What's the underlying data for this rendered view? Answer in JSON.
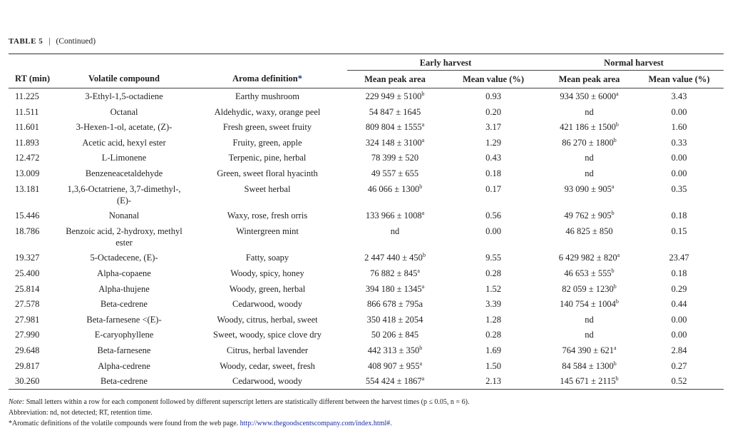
{
  "caption": {
    "label": "TABLE 5",
    "text": "(Continued)"
  },
  "groups": {
    "early": "Early harvest",
    "normal": "Normal harvest"
  },
  "headers": {
    "rt": "RT (min)",
    "compound": "Volatile compound",
    "aroma": "Aroma definition",
    "aroma_mark": "*",
    "early_area": "Mean peak area",
    "early_pct": "Mean value (%)",
    "normal_area": "Mean peak area",
    "normal_pct": "Mean value (%)"
  },
  "rows": [
    {
      "rt": "11.225",
      "compound": "3-Ethyl-1,5-octadiene",
      "aroma": "Earthy mushroom",
      "early_area": "229 949 ± 5100",
      "early_sup": "b",
      "early_pct": "0.93",
      "normal_area": "934 350 ± 6000",
      "normal_sup": "a",
      "normal_pct": "3.43"
    },
    {
      "rt": "11.511",
      "compound": "Octanal",
      "aroma": "Aldehydic, waxy, orange peel",
      "early_area": "54 847 ± 1645",
      "early_sup": "",
      "early_pct": "0.20",
      "normal_area": "nd",
      "normal_sup": "",
      "normal_pct": "0.00"
    },
    {
      "rt": "11.601",
      "compound": "3-Hexen-1-ol, acetate, (Z)-",
      "aroma": "Fresh green, sweet fruity",
      "early_area": "809 804 ± 1555",
      "early_sup": "a",
      "early_pct": "3.17",
      "normal_area": "421 186 ± 1500",
      "normal_sup": "b",
      "normal_pct": "1.60"
    },
    {
      "rt": "11.893",
      "compound": "Acetic acid, hexyl ester",
      "aroma": "Fruity, green, apple",
      "early_area": "324 148 ± 3100",
      "early_sup": "a",
      "early_pct": "1.29",
      "normal_area": "86 270 ± 1800",
      "normal_sup": "b",
      "normal_pct": "0.33"
    },
    {
      "rt": "12.472",
      "compound": "L-Limonene",
      "aroma": "Terpenic, pine, herbal",
      "early_area": "78 399 ± 520",
      "early_sup": "",
      "early_pct": "0.43",
      "normal_area": "nd",
      "normal_sup": "",
      "normal_pct": "0.00"
    },
    {
      "rt": "13.009",
      "compound": "Benzeneacetaldehyde",
      "aroma": "Green, sweet floral hyacinth",
      "early_area": "49 557 ± 655",
      "early_sup": "",
      "early_pct": "0.18",
      "normal_area": "nd",
      "normal_sup": "",
      "normal_pct": "0.00"
    },
    {
      "rt": "13.181",
      "compound": "1,3,6-Octatriene, 3,7-dimethyl-, (E)-",
      "aroma": "Sweet herbal",
      "early_area": "46 066 ± 1300",
      "early_sup": "b",
      "early_pct": "0.17",
      "normal_area": "93 090 ± 905",
      "normal_sup": "a",
      "normal_pct": "0.35"
    },
    {
      "rt": "15.446",
      "compound": "Nonanal",
      "aroma": "Waxy, rose, fresh orris",
      "early_area": "133 966 ± 1008",
      "early_sup": "a",
      "early_pct": "0.56",
      "normal_area": "49 762 ± 905",
      "normal_sup": "b",
      "normal_pct": "0.18"
    },
    {
      "rt": "18.786",
      "compound": "Benzoic acid, 2-hydroxy, methyl ester",
      "aroma": "Wintergreen mint",
      "early_area": "nd",
      "early_sup": "",
      "early_pct": "0.00",
      "normal_area": "46 825 ± 850",
      "normal_sup": "",
      "normal_pct": "0.15"
    },
    {
      "rt": "19.327",
      "compound": "5-Octadecene, (E)-",
      "aroma": "Fatty, soapy",
      "early_area": "2 447 440 ± 450",
      "early_sup": "b",
      "early_pct": "9.55",
      "normal_area": "6 429 982 ± 820",
      "normal_sup": "a",
      "normal_pct": "23.47"
    },
    {
      "rt": "25.400",
      "compound": "Alpha-copaene",
      "aroma": "Woody, spicy, honey",
      "early_area": "76 882 ± 845",
      "early_sup": "a",
      "early_pct": "0.28",
      "normal_area": "46 653 ± 555",
      "normal_sup": "b",
      "normal_pct": "0.18"
    },
    {
      "rt": "25.814",
      "compound": "Alpha-thujene",
      "aroma": "Woody, green, herbal",
      "early_area": "394 180 ± 1345",
      "early_sup": "a",
      "early_pct": "1.52",
      "normal_area": "82 059 ± 1230",
      "normal_sup": "b",
      "normal_pct": "0.29"
    },
    {
      "rt": "27.578",
      "compound": "Beta-cedrene",
      "aroma": "Cedarwood, woody",
      "early_area": "866 678 ± 795a",
      "early_sup": "",
      "early_pct": "3.39",
      "normal_area": "140 754 ± 1004",
      "normal_sup": "b",
      "normal_pct": "0.44"
    },
    {
      "rt": "27.981",
      "compound": "Beta-farnesene <(E)-",
      "aroma": "Woody, citrus, herbal, sweet",
      "early_area": "350 418 ± 2054",
      "early_sup": "",
      "early_pct": "1.28",
      "normal_area": "nd",
      "normal_sup": "",
      "normal_pct": "0.00"
    },
    {
      "rt": "27.990",
      "compound": "E-caryophyllene",
      "aroma": "Sweet, woody, spice clove dry",
      "early_area": "50 206 ± 845",
      "early_sup": "",
      "early_pct": "0.28",
      "normal_area": "nd",
      "normal_sup": "",
      "normal_pct": "0.00"
    },
    {
      "rt": "29.648",
      "compound": "Beta-farnesene",
      "aroma": "Citrus, herbal lavender",
      "early_area": "442 313 ± 350",
      "early_sup": "b",
      "early_pct": "1.69",
      "normal_area": "764 390 ± 621",
      "normal_sup": "a",
      "normal_pct": "2.84"
    },
    {
      "rt": "29.817",
      "compound": "Alpha-cedrene",
      "aroma": "Woody, cedar, sweet, fresh",
      "early_area": "408 907 ± 955",
      "early_sup": "a",
      "early_pct": "1.50",
      "normal_area": "84 584 ± 1300",
      "normal_sup": "b",
      "normal_pct": "0.27"
    },
    {
      "rt": "30.260",
      "compound": "Beta-cedrene",
      "aroma": "Cedarwood, woody",
      "early_area": "554 424 ± 1867",
      "early_sup": "a",
      "early_pct": "2.13",
      "normal_area": "145 671 ± 2115",
      "normal_sup": "b",
      "normal_pct": "0.52"
    }
  ],
  "notes": {
    "note_label": "Note:",
    "note": " Small letters within a row for each component followed by different superscript letters are statistically different between the harvest times (p ≤ 0.05, n = 6).",
    "abbreviation": "Abbreviation: nd, not detected; RT, retention time.",
    "aroma_mark": "*",
    "aroma_source": "Aromatic definitions of the volatile compounds were found from the web page. ",
    "link": "http://www.thegoodscentscompany.com/index.html#."
  }
}
